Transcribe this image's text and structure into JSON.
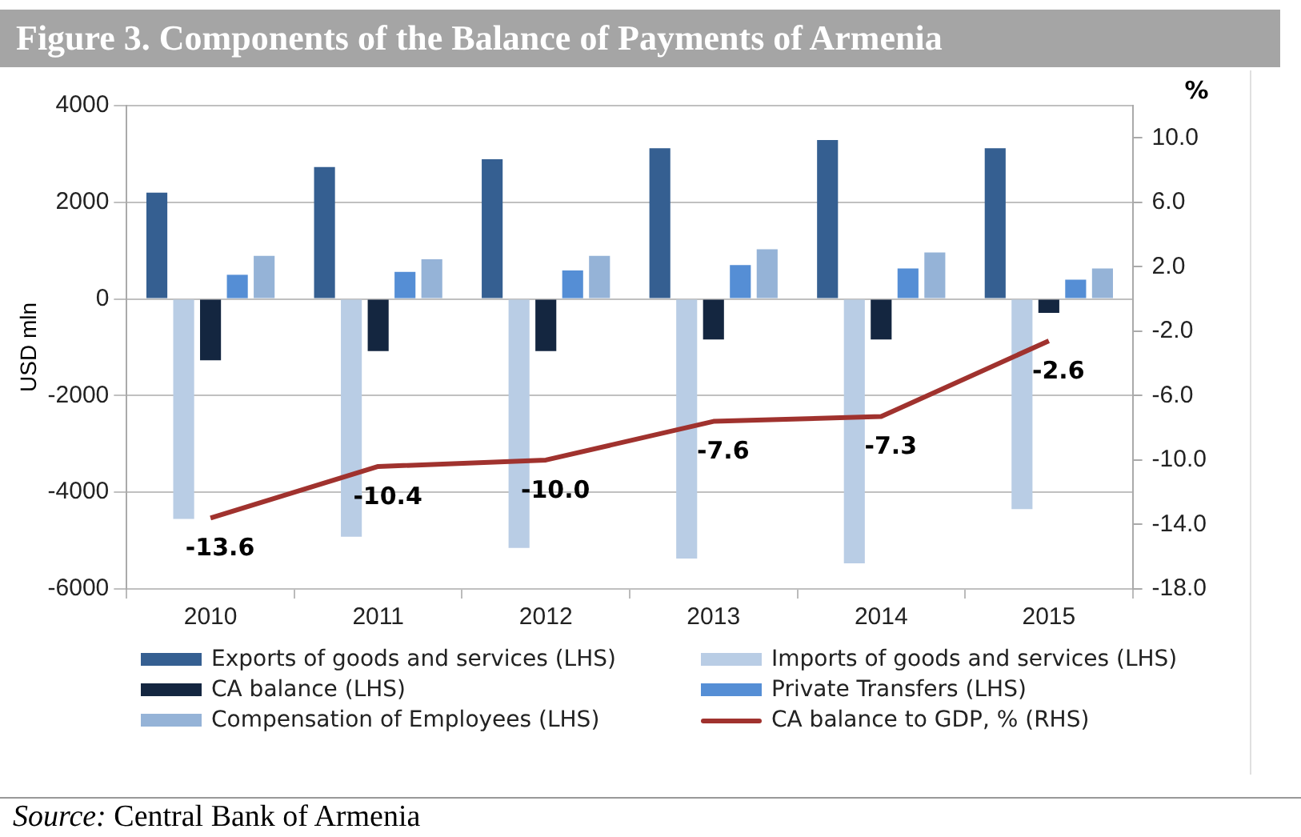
{
  "chart_data": {
    "type": "bar",
    "title": "Figure 3. Components of the Balance of Payments of Armenia",
    "ylabel": "USD mln",
    "y2label": "%",
    "categories": [
      "2010",
      "2011",
      "2012",
      "2013",
      "2014",
      "2015"
    ],
    "series": [
      {
        "name": "Exports of goods and services (LHS)",
        "color": "#355f91",
        "values": [
          2200,
          2730,
          2890,
          3120,
          3290,
          3120
        ]
      },
      {
        "name": "Imports of goods and services (LHS)",
        "color": "#b9cde5",
        "values": [
          -4550,
          -4920,
          -5150,
          -5370,
          -5470,
          -4350
        ]
      },
      {
        "name": "CA balance (LHS)",
        "color": "#142640",
        "values": [
          -1270,
          -1080,
          -1080,
          -840,
          -840,
          -290
        ]
      },
      {
        "name": "Private Transfers (LHS)",
        "color": "#558ed5",
        "values": [
          500,
          560,
          590,
          700,
          630,
          400
        ]
      },
      {
        "name": "Compensation of Employees (LHS)",
        "color": "#95b3d7",
        "values": [
          890,
          820,
          890,
          1030,
          960,
          630
        ]
      },
      {
        "name": "CA balance to GDP, % (RHS)",
        "type": "line",
        "axis": "y2",
        "color": "#a0322e",
        "values": [
          -13.6,
          -10.4,
          -10.0,
          -7.6,
          -7.3,
          -2.6
        ],
        "value_labels": [
          "-13.6",
          "-10.4",
          "-10.0",
          "-7.6",
          "-7.3",
          "-2.6"
        ],
        "marker": "none",
        "line_style": "solid"
      }
    ],
    "ylim": [
      -6000,
      4000
    ],
    "yticks": [
      -6000,
      -4000,
      -2000,
      0,
      2000,
      4000
    ],
    "y2lim": [
      -18,
      12
    ],
    "y2ticks": [
      {
        "value": -18,
        "label": "-18.0"
      },
      {
        "value": -14,
        "label": "-14.0"
      },
      {
        "value": -10,
        "label": "-10.0"
      },
      {
        "value": -6,
        "label": "-6.0"
      },
      {
        "value": -2,
        "label": "-2.0"
      },
      {
        "value": 2,
        "label": "2.0"
      },
      {
        "value": 6,
        "label": "6.0"
      },
      {
        "value": 10,
        "label": "10.0"
      }
    ],
    "grid": "y",
    "legend": "bottom",
    "annotations": [
      "Source: Central Bank of Armenia"
    ]
  }
}
